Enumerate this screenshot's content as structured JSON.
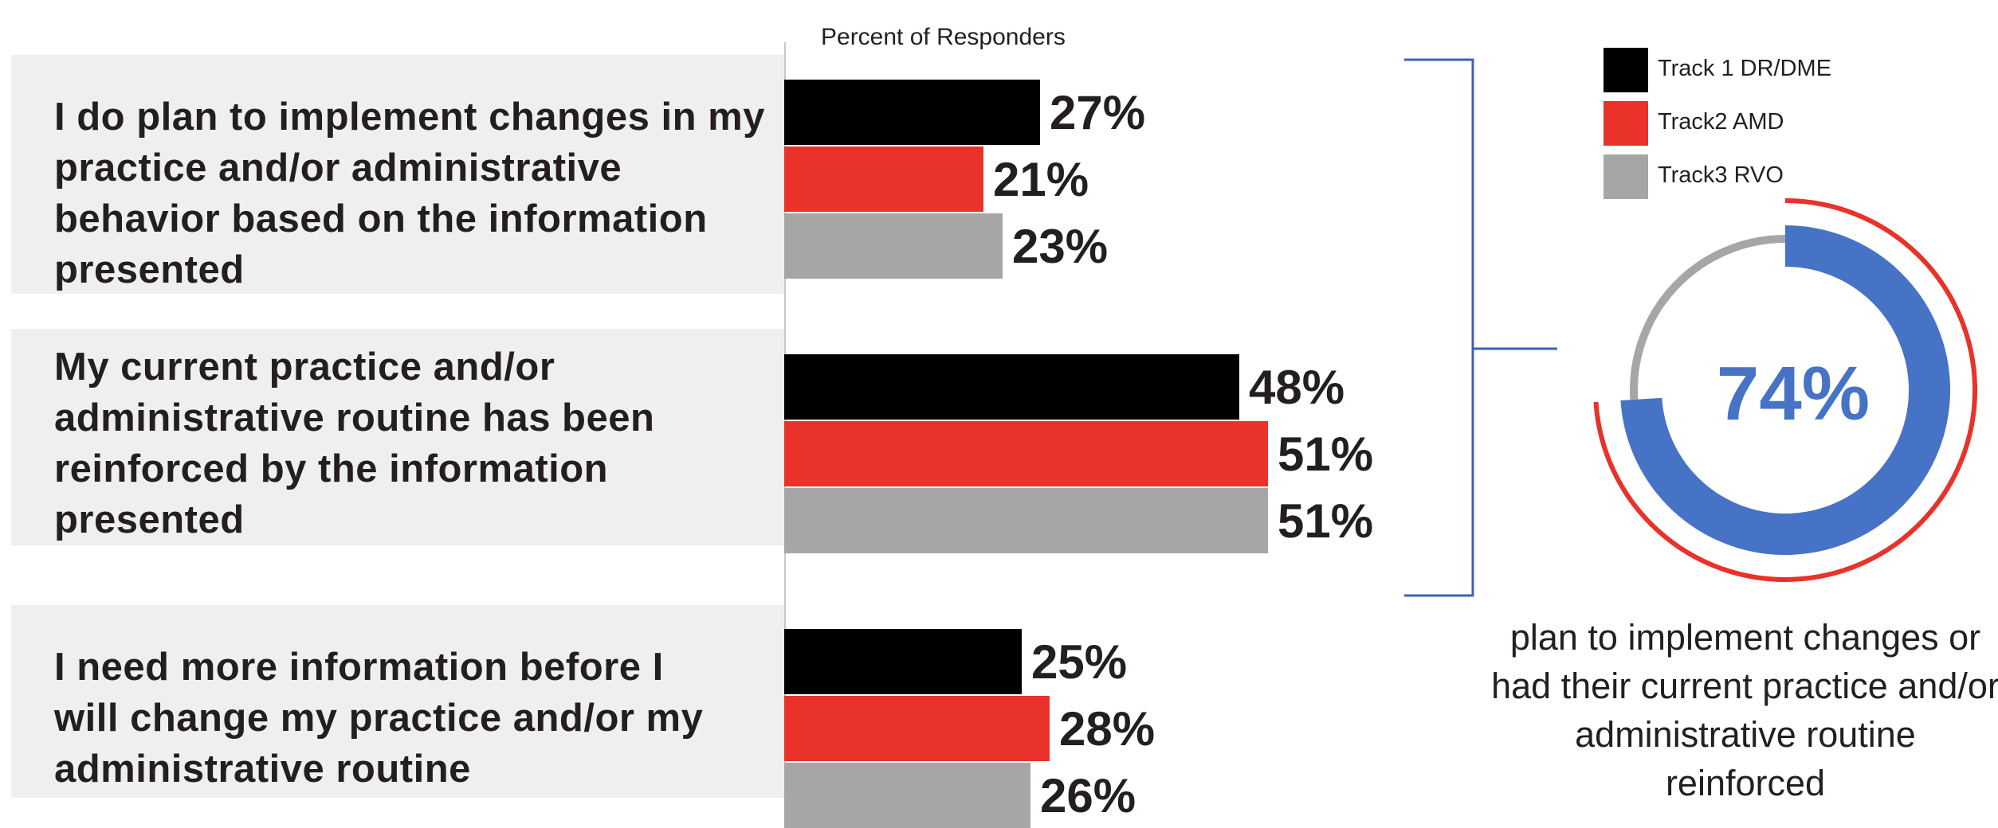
{
  "chart_data": {
    "type": "bar",
    "orientation": "horizontal",
    "xlabel": "Percent of Responders",
    "categories": [
      "I do plan to implement changes in my practice and/or administrative behavior based on the information presented",
      "My current practice and/or administrative routine has been reinforced by the information presented",
      "I need more information before I will change my practice and/or my administrative routine"
    ],
    "series": [
      {
        "name": "Track 1 DR/DME",
        "color": "#000000",
        "values": [
          27,
          48,
          25
        ],
        "labels": [
          "27%",
          "48%",
          "25%"
        ]
      },
      {
        "name": "Track2 AMD",
        "color": "#e8322a",
        "values": [
          21,
          51,
          28
        ],
        "labels": [
          "21%",
          "51%",
          "28%"
        ]
      },
      {
        "name": "Track3 RVO",
        "color": "#a6a6a6",
        "values": [
          23,
          51,
          26
        ],
        "labels": [
          "23%",
          "51%",
          "26%"
        ]
      }
    ],
    "legend_position": "top-right",
    "summary": {
      "type": "pie",
      "value": 74,
      "value_label": "74%",
      "caption": "plan to implement changes or had their current practice and/or administrative routine reinforced",
      "colors": {
        "value": "#4673c5",
        "remainder": "#a6a6a6",
        "outline": "#e8322a"
      }
    }
  }
}
